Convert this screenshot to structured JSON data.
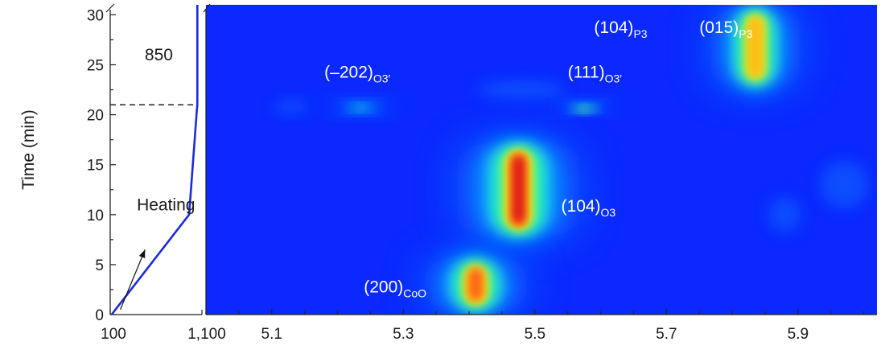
{
  "chart_data": [
    {
      "type": "line",
      "panel": "temperature-profile",
      "ylabel": "Time (min)",
      "xlim": [
        100,
        1100
      ],
      "ylim": [
        0,
        31
      ],
      "x_ticks": [
        {
          "value": 100,
          "label": "100"
        },
        {
          "value": 1100,
          "label": "1,100"
        }
      ],
      "y_ticks": [
        0,
        5,
        10,
        15,
        20,
        25,
        30
      ],
      "series": [
        {
          "x": [
            115,
            960,
            1045,
            1050,
            1050
          ],
          "y": [
            0,
            10,
            20.5,
            21,
            31
          ]
        }
      ],
      "hold_time": 21,
      "annotations": [
        {
          "text": "850",
          "x": 630,
          "y": 26
        },
        {
          "text": "Heating",
          "x": 620,
          "y": 11
        }
      ],
      "arrow": {
        "from": [
          210,
          0.5
        ],
        "to": [
          480,
          6.5
        ]
      }
    },
    {
      "type": "heatmap",
      "panel": "diffraction-contour",
      "xlim": [
        5.0,
        6.02
      ],
      "ylim": [
        0,
        31
      ],
      "x_ticks": [
        "5.1",
        "5.3",
        "5.5",
        "5.7",
        "5.9"
      ],
      "colormap": [
        "#0a28ff",
        "#0b6cff",
        "#0ab7ff",
        "#16f0d2",
        "#52f08a",
        "#c8f02a",
        "#ffbe14",
        "#ff6414",
        "#dc1e14"
      ],
      "background_color": "#0a28ff",
      "peaks": [
        {
          "label": "(200)",
          "sub": "CoO",
          "x": 5.41,
          "y0": 0,
          "y1": 6,
          "intensity": 0.92
        },
        {
          "label": "(104)",
          "sub": "O3",
          "x": 5.475,
          "y0": 7.5,
          "y1": 17.5,
          "intensity": 1.0
        },
        {
          "label": "(–202)",
          "sub": "O3′",
          "x": 5.235,
          "y0": 20,
          "y1": 21.5,
          "intensity": 0.38
        },
        {
          "label": "(111)",
          "sub": "O3′",
          "x": 5.575,
          "y0": 20.2,
          "y1": 21.5,
          "intensity": 0.5
        },
        {
          "label": "(015)",
          "sub": "P3",
          "x": 5.835,
          "y0": 22.5,
          "y1": 31,
          "intensity": 0.75
        },
        {
          "label": "(104)",
          "sub": "P3",
          "x": null,
          "y0": null,
          "y1": null,
          "intensity": 0
        }
      ]
    }
  ]
}
